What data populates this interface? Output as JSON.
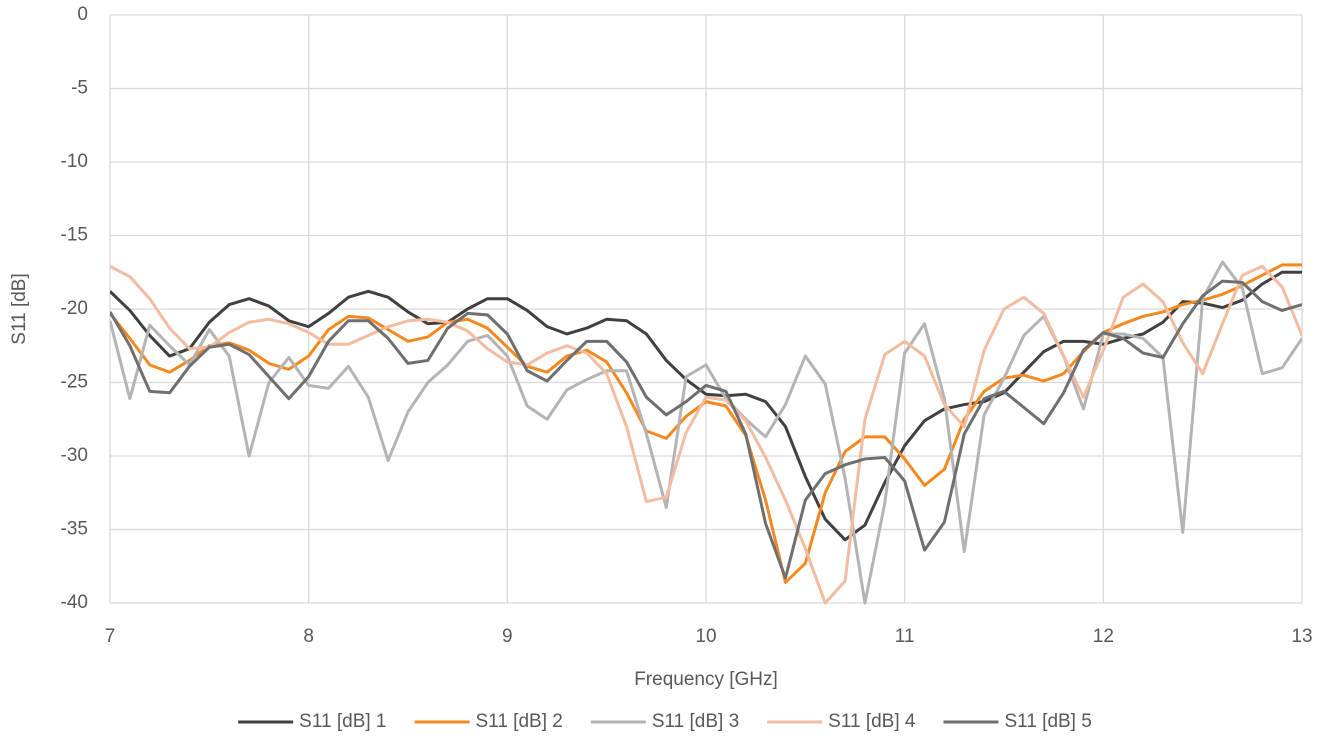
{
  "chart_data": {
    "type": "line",
    "xlabel": "Frequency [GHz]",
    "ylabel": "S11 [dB]",
    "x": [
      7.0,
      7.1,
      7.2,
      7.3,
      7.4,
      7.5,
      7.6,
      7.7,
      7.8,
      7.9,
      8.0,
      8.1,
      8.2,
      8.3,
      8.4,
      8.5,
      8.6,
      8.7,
      8.8,
      8.9,
      9.0,
      9.1,
      9.2,
      9.3,
      9.4,
      9.5,
      9.6,
      9.7,
      9.8,
      9.9,
      10.0,
      10.1,
      10.2,
      10.3,
      10.4,
      10.5,
      10.6,
      10.7,
      10.8,
      10.9,
      11.0,
      11.1,
      11.2,
      11.3,
      11.4,
      11.5,
      11.6,
      11.7,
      11.8,
      11.9,
      12.0,
      12.1,
      12.2,
      12.3,
      12.4,
      12.5,
      12.6,
      12.7,
      12.8,
      12.9,
      13.0
    ],
    "series": [
      {
        "name": "S11 [dB] 1",
        "color": "#404040",
        "values": [
          -18.8,
          -20.1,
          -21.8,
          -23.2,
          -22.7,
          -20.9,
          -19.7,
          -19.3,
          -19.8,
          -20.8,
          -21.2,
          -20.3,
          -19.2,
          -18.8,
          -19.2,
          -20.2,
          -21.0,
          -20.9,
          -20.0,
          -19.3,
          -19.3,
          -20.1,
          -21.2,
          -21.7,
          -21.3,
          -20.7,
          -20.8,
          -21.7,
          -23.5,
          -24.8,
          -25.8,
          -25.9,
          -25.8,
          -26.3,
          -28.0,
          -31.4,
          -34.3,
          -35.7,
          -34.7,
          -31.8,
          -29.3,
          -27.6,
          -26.8,
          -26.5,
          -26.3,
          -25.7,
          -24.3,
          -22.9,
          -22.2,
          -22.2,
          -22.4,
          -22.0,
          -21.7,
          -20.9,
          -19.5,
          -19.6,
          -19.9,
          -19.4,
          -18.3,
          -17.5,
          -17.5
        ]
      },
      {
        "name": "S11 [dB] 2",
        "color": "#f5891f",
        "values": [
          -20.3,
          -22.0,
          -23.8,
          -24.3,
          -23.5,
          -22.5,
          -22.3,
          -22.8,
          -23.7,
          -24.1,
          -23.2,
          -21.4,
          -20.5,
          -20.6,
          -21.4,
          -22.2,
          -21.9,
          -20.9,
          -20.7,
          -21.3,
          -22.6,
          -23.9,
          -24.3,
          -23.2,
          -22.8,
          -23.6,
          -25.7,
          -28.3,
          -28.8,
          -27.3,
          -26.3,
          -26.6,
          -28.6,
          -33.0,
          -38.6,
          -37.3,
          -32.5,
          -29.7,
          -28.7,
          -28.7,
          -30.2,
          -32.0,
          -30.9,
          -27.5,
          -25.6,
          -24.7,
          -24.5,
          -24.9,
          -24.4,
          -22.9,
          -21.6,
          -21.0,
          -20.5,
          -20.2,
          -19.7,
          -19.4,
          -19.0,
          -18.4,
          -17.7,
          -17.0,
          -17.0
        ]
      },
      {
        "name": "S11 [dB] 3",
        "color": "#b4b4b4",
        "values": [
          -20.8,
          -26.1,
          -21.1,
          -22.5,
          -23.8,
          -21.4,
          -23.2,
          -30.0,
          -25.0,
          -23.3,
          -25.2,
          -25.4,
          -23.9,
          -26.0,
          -30.3,
          -27.0,
          -25.0,
          -23.8,
          -22.2,
          -21.8,
          -23.2,
          -26.6,
          -27.5,
          -25.5,
          -24.8,
          -24.2,
          -24.2,
          -28.5,
          -33.5,
          -24.6,
          -23.8,
          -26.1,
          -27.5,
          -28.7,
          -26.5,
          -23.2,
          -25.1,
          -31.5,
          -40.0,
          -33.2,
          -23.0,
          -21.0,
          -26.1,
          -36.5,
          -27.2,
          -24.7,
          -21.8,
          -20.5,
          -23.2,
          -26.8,
          -21.7,
          -21.7,
          -22.0,
          -23.3,
          -35.2,
          -19.3,
          -16.8,
          -18.6,
          -24.4,
          -24.0,
          -22.0
        ]
      },
      {
        "name": "S11 [dB] 4",
        "color": "#f3bba0",
        "values": [
          -17.1,
          -17.8,
          -19.3,
          -21.3,
          -22.7,
          -22.6,
          -21.6,
          -20.9,
          -20.7,
          -21.0,
          -21.6,
          -22.4,
          -22.4,
          -21.8,
          -21.2,
          -20.8,
          -20.7,
          -20.9,
          -21.5,
          -22.7,
          -23.6,
          -23.8,
          -23.0,
          -22.5,
          -23.0,
          -24.4,
          -28.0,
          -33.1,
          -32.8,
          -28.4,
          -26.0,
          -26.2,
          -27.6,
          -30.1,
          -33.0,
          -36.3,
          -40.0,
          -38.5,
          -27.5,
          -23.1,
          -22.2,
          -23.2,
          -26.5,
          -28.0,
          -22.8,
          -20.0,
          -19.2,
          -20.3,
          -23.2,
          -26.0,
          -22.8,
          -19.2,
          -18.3,
          -19.5,
          -22.3,
          -24.4,
          -21.0,
          -17.7,
          -17.1,
          -18.5,
          -21.8
        ]
      },
      {
        "name": "S11 [dB] 5",
        "color": "#6f6f6f",
        "values": [
          -20.2,
          -22.5,
          -25.6,
          -25.7,
          -23.9,
          -22.6,
          -22.4,
          -23.1,
          -24.6,
          -26.1,
          -24.6,
          -22.2,
          -20.8,
          -20.8,
          -22.0,
          -23.7,
          -23.5,
          -21.3,
          -20.3,
          -20.4,
          -21.7,
          -24.2,
          -24.9,
          -23.5,
          -22.2,
          -22.2,
          -23.6,
          -26.0,
          -27.2,
          -26.3,
          -25.2,
          -25.6,
          -28.5,
          -34.6,
          -38.3,
          -33.0,
          -31.2,
          -30.6,
          -30.2,
          -30.1,
          -31.7,
          -36.4,
          -34.5,
          -28.5,
          -26.1,
          -25.6,
          -26.7,
          -27.8,
          -25.7,
          -22.8,
          -21.6,
          -22.0,
          -23.0,
          -23.3,
          -21.0,
          -19.1,
          -18.1,
          -18.2,
          -19.5,
          -20.1,
          -19.7
        ]
      }
    ],
    "xlim": [
      7,
      13
    ],
    "xticks": [
      7,
      8,
      9,
      10,
      11,
      12,
      13
    ],
    "ylim": [
      -40,
      0
    ],
    "yticks": [
      0,
      -5,
      -10,
      -15,
      -20,
      -25,
      -30,
      -35,
      -40
    ],
    "grid": true,
    "legend": "bottom"
  }
}
